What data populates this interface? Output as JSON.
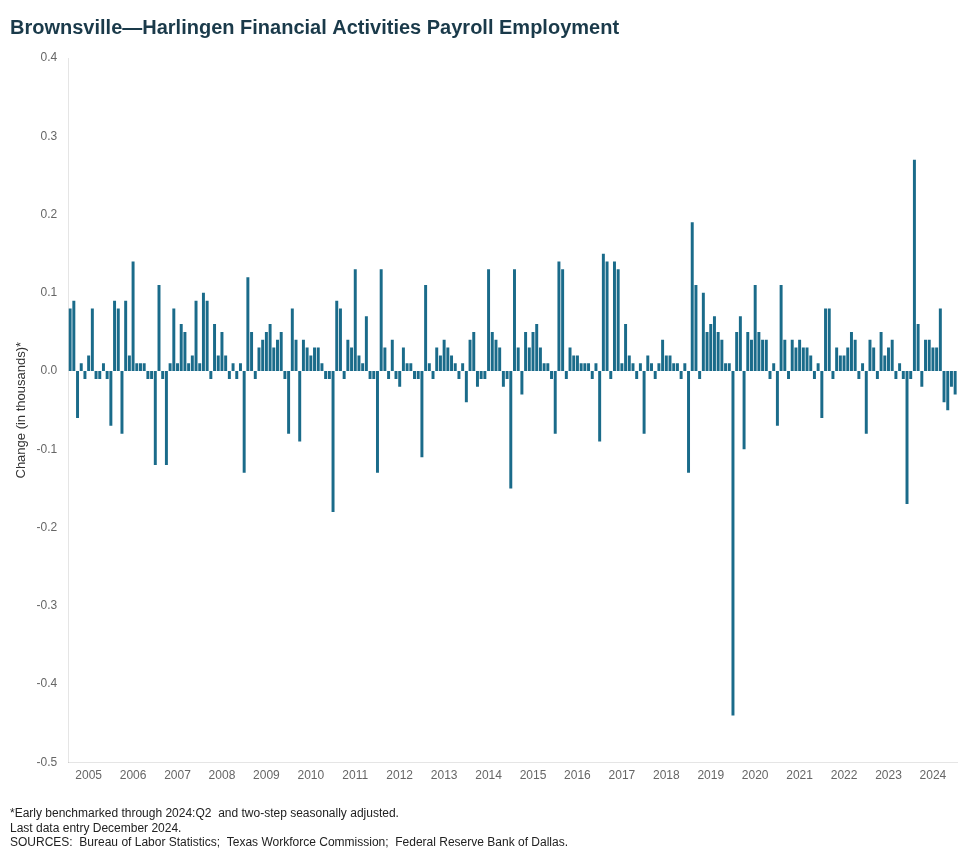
{
  "chart_data": {
    "type": "bar",
    "title": "Brownsville—Harlingen Financial Activities Payroll Employment",
    "title_color": "#1a3a4a",
    "ylabel": "Change (in thousands)*",
    "annotations": [
      "*Early benchmarked through 2024:Q2  and two-step seasonally adjusted.",
      "Last data entry December 2024.",
      "SOURCES:  Bureau of Labor Statistics;  Texas Workforce Commission;  Federal Reserve Bank of Dallas."
    ],
    "color": "#1a6b8a",
    "grid": false,
    "ylim": [
      -0.5,
      0.4
    ],
    "yticks": [
      -0.5,
      -0.4,
      -0.3,
      -0.2,
      -0.1,
      {
        "value": 0,
        "label": "0.0"
      },
      0.1,
      0.2,
      0.3,
      0.4
    ],
    "categories": [
      null,
      null,
      null,
      null,
      null,
      "2005",
      null,
      null,
      null,
      null,
      null,
      null,
      null,
      null,
      null,
      null,
      null,
      "2006",
      null,
      null,
      null,
      null,
      null,
      null,
      null,
      null,
      null,
      null,
      null,
      "2007",
      null,
      null,
      null,
      null,
      null,
      null,
      null,
      null,
      null,
      null,
      null,
      "2008",
      null,
      null,
      null,
      null,
      null,
      null,
      null,
      null,
      null,
      null,
      null,
      "2009",
      null,
      null,
      null,
      null,
      null,
      null,
      null,
      null,
      null,
      null,
      null,
      "2010",
      null,
      null,
      null,
      null,
      null,
      null,
      null,
      null,
      null,
      null,
      null,
      "2011",
      null,
      null,
      null,
      null,
      null,
      null,
      null,
      null,
      null,
      null,
      null,
      "2012",
      null,
      null,
      null,
      null,
      null,
      null,
      null,
      null,
      null,
      null,
      null,
      "2013",
      null,
      null,
      null,
      null,
      null,
      null,
      null,
      null,
      null,
      null,
      null,
      "2014",
      null,
      null,
      null,
      null,
      null,
      null,
      null,
      null,
      null,
      null,
      null,
      "2015",
      null,
      null,
      null,
      null,
      null,
      null,
      null,
      null,
      null,
      null,
      null,
      "2016",
      null,
      null,
      null,
      null,
      null,
      null,
      null,
      null,
      null,
      null,
      null,
      "2017",
      null,
      null,
      null,
      null,
      null,
      null,
      null,
      null,
      null,
      null,
      null,
      "2018",
      null,
      null,
      null,
      null,
      null,
      null,
      null,
      null,
      null,
      null,
      null,
      "2019",
      null,
      null,
      null,
      null,
      null,
      null,
      null,
      null,
      null,
      null,
      null,
      "2020",
      null,
      null,
      null,
      null,
      null,
      null,
      null,
      null,
      null,
      null,
      null,
      "2021",
      null,
      null,
      null,
      null,
      null,
      null,
      null,
      null,
      null,
      null,
      null,
      "2022",
      null,
      null,
      null,
      null,
      null,
      null,
      null,
      null,
      null,
      null,
      null,
      "2023",
      null,
      null,
      null,
      null,
      null,
      null,
      null,
      null,
      null,
      null,
      null,
      "2024",
      null,
      null,
      null,
      null,
      null,
      null
    ],
    "values": [
      0.08,
      0.09,
      -0.06,
      0.01,
      -0.01,
      0.02,
      0.08,
      -0.01,
      -0.01,
      0.01,
      -0.01,
      -0.07,
      0.09,
      0.08,
      -0.08,
      0.09,
      0.02,
      0.14,
      0.01,
      0.01,
      0.01,
      -0.01,
      -0.01,
      -0.12,
      0.11,
      -0.01,
      -0.12,
      0.01,
      0.08,
      0.01,
      0.06,
      0.05,
      0.01,
      0.02,
      0.09,
      0.01,
      0.1,
      0.09,
      -0.01,
      0.06,
      0.02,
      0.05,
      0.02,
      -0.01,
      0.01,
      -0.01,
      0.01,
      -0.13,
      0.12,
      0.05,
      -0.01,
      0.03,
      0.04,
      0.05,
      0.06,
      0.03,
      0.04,
      0.05,
      -0.01,
      -0.08,
      0.08,
      0.04,
      -0.09,
      0.04,
      0.03,
      0.02,
      0.03,
      0.03,
      0.01,
      -0.01,
      -0.01,
      -0.18,
      0.09,
      0.08,
      -0.01,
      0.04,
      0.03,
      0.13,
      0.02,
      0.01,
      0.07,
      -0.01,
      -0.01,
      -0.13,
      0.13,
      0.03,
      -0.01,
      0.04,
      -0.01,
      -0.02,
      0.03,
      0.01,
      0.01,
      -0.01,
      -0.01,
      -0.11,
      0.11,
      0.01,
      -0.01,
      0.03,
      0.02,
      0.04,
      0.03,
      0.02,
      0.01,
      -0.01,
      0.01,
      -0.04,
      0.04,
      0.05,
      -0.02,
      -0.01,
      -0.01,
      0.13,
      0.05,
      0.04,
      0.03,
      -0.02,
      -0.01,
      -0.15,
      0.13,
      0.03,
      -0.03,
      0.05,
      0.03,
      0.05,
      0.06,
      0.03,
      0.01,
      0.01,
      -0.01,
      -0.08,
      0.14,
      0.13,
      -0.01,
      0.03,
      0.02,
      0.02,
      0.01,
      0.01,
      0.01,
      -0.01,
      0.01,
      -0.09,
      0.15,
      0.14,
      -0.01,
      0.14,
      0.13,
      0.01,
      0.06,
      0.02,
      0.01,
      -0.01,
      0.01,
      -0.08,
      0.02,
      0.01,
      -0.01,
      0.01,
      0.04,
      0.02,
      0.02,
      0.01,
      0.01,
      -0.01,
      0.01,
      -0.13,
      0.19,
      0.11,
      -0.01,
      0.1,
      0.05,
      0.06,
      0.07,
      0.05,
      0.04,
      0.01,
      0.01,
      -0.44,
      0.05,
      0.07,
      -0.1,
      0.05,
      0.04,
      0.11,
      0.05,
      0.04,
      0.04,
      -0.01,
      0.01,
      -0.07,
      0.11,
      0.04,
      -0.01,
      0.04,
      0.03,
      0.04,
      0.03,
      0.03,
      0.02,
      -0.01,
      0.01,
      -0.06,
      0.08,
      0.08,
      -0.01,
      0.03,
      0.02,
      0.02,
      0.03,
      0.05,
      0.04,
      -0.01,
      0.01,
      -0.08,
      0.04,
      0.03,
      -0.01,
      0.05,
      0.02,
      0.03,
      0.04,
      -0.01,
      0.01,
      -0.01,
      -0.17,
      -0.01,
      0.27,
      0.06,
      -0.02,
      0.04,
      0.04,
      0.03,
      0.03,
      0.08,
      -0.04,
      -0.05,
      -0.02,
      -0.03
    ]
  }
}
